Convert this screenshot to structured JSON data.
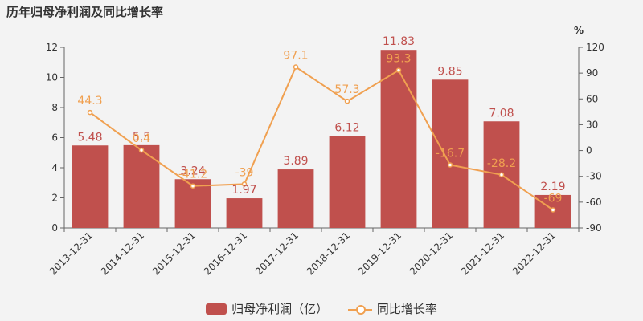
{
  "chart_data": {
    "type": "bar",
    "title": "历年归母净利润及同比增长率",
    "categories": [
      "2013-12-31",
      "2014-12-31",
      "2015-12-31",
      "2016-12-31",
      "2017-12-31",
      "2018-12-31",
      "2019-12-31",
      "2020-12-31",
      "2021-12-31",
      "2022-12-31"
    ],
    "series": [
      {
        "name": "归母净利润（亿）",
        "type": "bar",
        "axis": "left",
        "values": [
          5.48,
          5.5,
          3.24,
          1.97,
          3.89,
          6.12,
          11.83,
          9.85,
          7.08,
          2.19
        ],
        "labels": [
          "5.48",
          "5.5",
          "3.24",
          "1.97",
          "3.89",
          "6.12",
          "11.83",
          "9.85",
          "7.08",
          "2.19"
        ]
      },
      {
        "name": "同比增长率",
        "type": "line",
        "axis": "right",
        "values": [
          44.3,
          0.4,
          -41.2,
          -39,
          97.1,
          57.3,
          93.3,
          -16.7,
          -28.2,
          -69
        ],
        "labels": [
          "44.3",
          "0.4",
          "-41.2",
          "-39",
          "97.1",
          "57.3",
          "93.3",
          "-16.7",
          "-28.2",
          "-69"
        ]
      }
    ],
    "left_axis": {
      "min": 0,
      "max": 12,
      "ticks": [
        "0",
        "2",
        "4",
        "6",
        "8",
        "10",
        "12"
      ]
    },
    "right_axis": {
      "unit": "%",
      "min": -90,
      "max": 120,
      "ticks": [
        "-90",
        "-60",
        "-30",
        "0",
        "30",
        "60",
        "90",
        "120"
      ]
    },
    "colors": {
      "bar": "#c0504d",
      "line": "#f0a050"
    },
    "legend_position": "bottom"
  }
}
